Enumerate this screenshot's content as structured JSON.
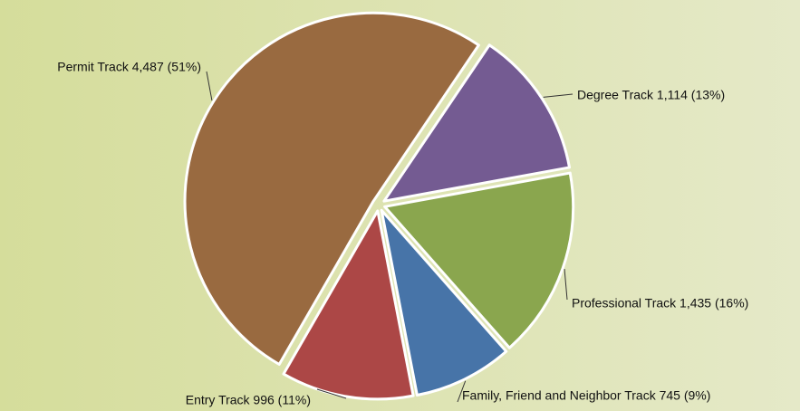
{
  "chart_data": {
    "type": "pie",
    "categories": [
      "Degree Track",
      "Professional Track",
      "Family, Friend and Neighbor Track",
      "Entry Track",
      "Permit Track"
    ],
    "values": [
      1114,
      1435,
      745,
      996,
      4487
    ],
    "labels": [
      "Degree Track 1,114 (13%)",
      "Professional Track 1,435 (16%)",
      "Family, Friend and Neighbor Track 745 (9%)",
      "Entry Track 996 (11%)",
      "Permit Track 4,487 (51%)"
    ],
    "colors": [
      "#745b92",
      "#8aa64e",
      "#4774a8",
      "#ac4746",
      "#996a40"
    ]
  }
}
